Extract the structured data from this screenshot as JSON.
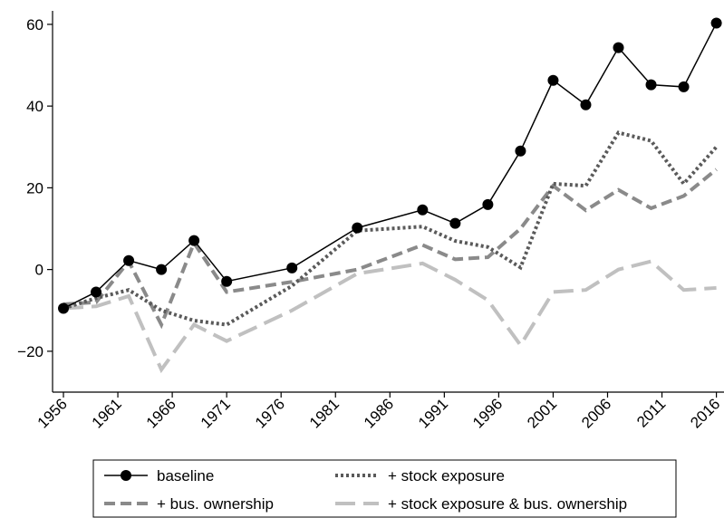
{
  "chart_data": {
    "type": "line",
    "x": [
      1956,
      1959,
      1962,
      1965,
      1968,
      1971,
      1977,
      1983,
      1989,
      1992,
      1995,
      1998,
      2001,
      2004,
      2007,
      2010,
      2013,
      2016
    ],
    "series": [
      {
        "name": "baseline",
        "color": "#000000",
        "line_style": "solid",
        "marker": "circle",
        "values": [
          -9.5,
          -5.5,
          2.2,
          0,
          7.1,
          -2.9,
          0.4,
          10.2,
          14.6,
          11.3,
          15.9,
          29,
          46.3,
          40.3,
          54.3,
          45.2,
          44.7,
          60.3
        ]
      },
      {
        "name": "+ stock exposure",
        "color": "#5a5a5a",
        "line_style": "dotted",
        "values": [
          -9.5,
          -7,
          -5,
          -10,
          -12.5,
          -13.5,
          -4,
          9.5,
          10.5,
          7,
          5.5,
          0.5,
          21,
          20.5,
          33.5,
          31.5,
          21,
          30
        ]
      },
      {
        "name": "+ bus. ownership",
        "color": "#8a8a8a",
        "line_style": "dashed",
        "values": [
          -8.5,
          -8,
          2,
          -13.5,
          6.5,
          -5.5,
          -3,
          0,
          6,
          2.5,
          3,
          10,
          20.5,
          14.5,
          19.5,
          15,
          18,
          24.5
        ]
      },
      {
        "name": "+ stock exposure & bus. ownership",
        "color": "#c0c0c0",
        "line_style": "longdash",
        "values": [
          -9.5,
          -9,
          -6.5,
          -24.5,
          -13.5,
          -17.5,
          -10,
          -1,
          1.5,
          -2.5,
          -7.5,
          -18.5,
          -5.5,
          -5,
          0,
          2,
          -5,
          -4.5
        ]
      }
    ],
    "xlim": [
      1955,
      2016.7
    ],
    "xticks": [
      1956,
      1961,
      1966,
      1971,
      1976,
      1981,
      1986,
      1991,
      1996,
      2001,
      2006,
      2011,
      2016
    ],
    "ylim": [
      -30,
      63.3
    ],
    "yticks": [
      {
        "value": -20,
        "label": "−20"
      },
      0,
      20,
      40,
      60
    ],
    "grid": false,
    "legend": "bottom"
  }
}
